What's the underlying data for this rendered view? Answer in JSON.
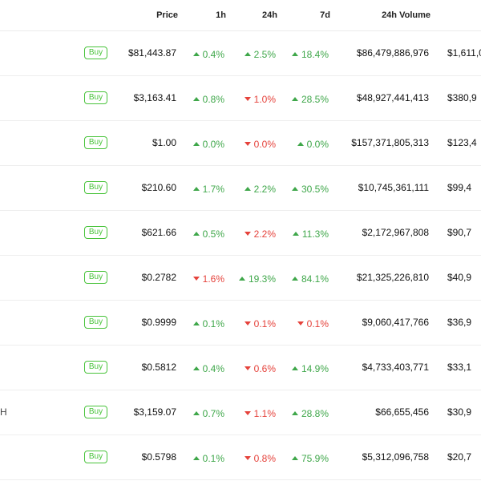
{
  "colors": {
    "up": "#3fa74a",
    "down": "#e5423b",
    "buy": "#48c33a"
  },
  "columns": {
    "price": "Price",
    "h1": "1h",
    "h24": "24h",
    "d7": "7d",
    "volume": "24h Volume"
  },
  "buy_label": "Buy",
  "rows": [
    {
      "name_fragment": "",
      "price": "$81,443.87",
      "h1": {
        "dir": "up",
        "val": "0.4%"
      },
      "h24": {
        "dir": "up",
        "val": "2.5%"
      },
      "d7": {
        "dir": "up",
        "val": "18.4%"
      },
      "volume": "$86,479,886,976",
      "mcap": "$1,611,0"
    },
    {
      "name_fragment": "",
      "price": "$3,163.41",
      "h1": {
        "dir": "up",
        "val": "0.8%"
      },
      "h24": {
        "dir": "down",
        "val": "1.0%"
      },
      "d7": {
        "dir": "up",
        "val": "28.5%"
      },
      "volume": "$48,927,441,413",
      "mcap": "$380,9"
    },
    {
      "name_fragment": "",
      "price": "$1.00",
      "h1": {
        "dir": "up",
        "val": "0.0%"
      },
      "h24": {
        "dir": "down",
        "val": "0.0%"
      },
      "d7": {
        "dir": "up",
        "val": "0.0%"
      },
      "volume": "$157,371,805,313",
      "mcap": "$123,4"
    },
    {
      "name_fragment": "",
      "price": "$210.60",
      "h1": {
        "dir": "up",
        "val": "1.7%"
      },
      "h24": {
        "dir": "up",
        "val": "2.2%"
      },
      "d7": {
        "dir": "up",
        "val": "30.5%"
      },
      "volume": "$10,745,361,111",
      "mcap": "$99,4"
    },
    {
      "name_fragment": "",
      "price": "$621.66",
      "h1": {
        "dir": "up",
        "val": "0.5%"
      },
      "h24": {
        "dir": "down",
        "val": "2.2%"
      },
      "d7": {
        "dir": "up",
        "val": "11.3%"
      },
      "volume": "$2,172,967,808",
      "mcap": "$90,7"
    },
    {
      "name_fragment": "",
      "price": "$0.2782",
      "h1": {
        "dir": "down",
        "val": "1.6%"
      },
      "h24": {
        "dir": "up",
        "val": "19.3%"
      },
      "d7": {
        "dir": "up",
        "val": "84.1%"
      },
      "volume": "$21,325,226,810",
      "mcap": "$40,9"
    },
    {
      "name_fragment": "",
      "price": "$0.9999",
      "h1": {
        "dir": "up",
        "val": "0.1%"
      },
      "h24": {
        "dir": "down",
        "val": "0.1%"
      },
      "d7": {
        "dir": "down",
        "val": "0.1%"
      },
      "volume": "$9,060,417,766",
      "mcap": "$36,9"
    },
    {
      "name_fragment": "",
      "price": "$0.5812",
      "h1": {
        "dir": "up",
        "val": "0.4%"
      },
      "h24": {
        "dir": "down",
        "val": "0.6%"
      },
      "d7": {
        "dir": "up",
        "val": "14.9%"
      },
      "volume": "$4,733,403,771",
      "mcap": "$33,1"
    },
    {
      "name_fragment": "H",
      "price": "$3,159.07",
      "h1": {
        "dir": "up",
        "val": "0.7%"
      },
      "h24": {
        "dir": "down",
        "val": "1.1%"
      },
      "d7": {
        "dir": "up",
        "val": "28.8%"
      },
      "volume": "$66,655,456",
      "mcap": "$30,9"
    },
    {
      "name_fragment": "",
      "price": "$0.5798",
      "h1": {
        "dir": "up",
        "val": "0.1%"
      },
      "h24": {
        "dir": "down",
        "val": "0.8%"
      },
      "d7": {
        "dir": "up",
        "val": "75.9%"
      },
      "volume": "$5,312,096,758",
      "mcap": "$20,7"
    }
  ]
}
